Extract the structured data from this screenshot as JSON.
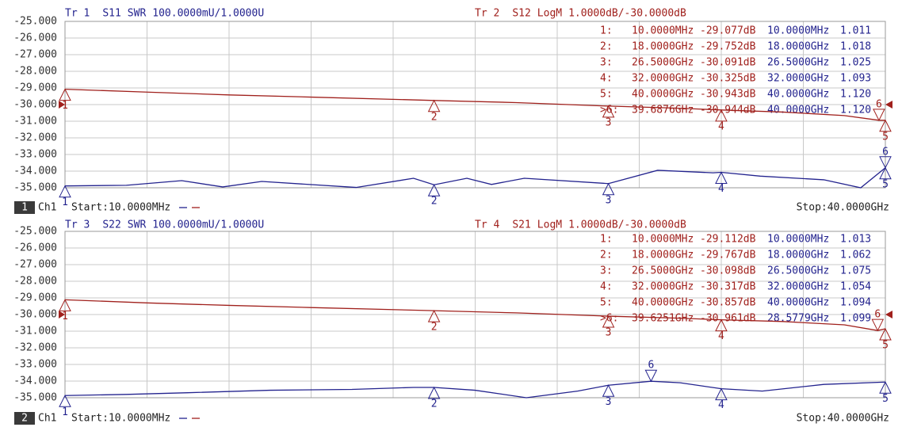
{
  "chart_data": [
    {
      "type": "line",
      "xlim": [
        0.01,
        40
      ],
      "ylim": [
        -35,
        -25
      ],
      "y2lim": [
        1,
        2
      ],
      "yticks": [
        {
          "value": -25,
          "label": "-25.000"
        },
        {
          "value": -26,
          "label": "-26.000"
        },
        {
          "value": -27,
          "label": "-27.000"
        },
        {
          "value": -28,
          "label": "-28.000"
        },
        {
          "value": -29,
          "label": "-29.000"
        },
        {
          "value": -30,
          "label": "-30.000"
        },
        {
          "value": -31,
          "label": "-31.000"
        },
        {
          "value": -32,
          "label": "-32.000"
        },
        {
          "value": -33,
          "label": "-33.000"
        },
        {
          "value": -34,
          "label": "-34.000"
        },
        {
          "value": -35,
          "label": "-35.000"
        }
      ],
      "series": [
        {
          "name": "Tr 1",
          "param": "S11",
          "format": "SWR",
          "scale": "100.0000mU/1.0000U",
          "color": "#23238e",
          "axis": "y2",
          "x": [
            0.01,
            3,
            5.7,
            7.7,
            9.6,
            14.2,
            17,
            18,
            19.6,
            20.8,
            22.4,
            26.5,
            28.9,
            31.6,
            32,
            33.9,
            37,
            38.8,
            40
          ],
          "values": [
            1.011,
            1.015,
            1.043,
            1.005,
            1.038,
            1.002,
            1.057,
            1.018,
            1.057,
            1.02,
            1.057,
            1.025,
            1.105,
            1.09,
            1.093,
            1.07,
            1.048,
            1.0,
            1.12
          ],
          "markers": [
            {
              "id": "1",
              "x": 0.01,
              "value": 1.011,
              "x_label": "10.0000MHz",
              "value_label": "1.011"
            },
            {
              "id": "2",
              "x": 18,
              "value": 1.018,
              "x_label": "18.0000GHz",
              "value_label": "1.018"
            },
            {
              "id": "3",
              "x": 26.5,
              "value": 1.025,
              "x_label": "26.5000GHz",
              "value_label": "1.025"
            },
            {
              "id": "4",
              "x": 32,
              "value": 1.093,
              "x_label": "32.0000GHz",
              "value_label": "1.093"
            },
            {
              "id": "5",
              "x": 40,
              "value": 1.12,
              "x_label": "40.0000GHz",
              "value_label": "1.120"
            },
            {
              "id": "6",
              "x": 40,
              "value": 1.12,
              "x_label": "40.0000GHz",
              "value_label": "1.120"
            }
          ]
        },
        {
          "name": "Tr 2",
          "param": "S12",
          "format": "LogM",
          "scale": "1.0000dB/-30.0000dB",
          "color": "#a0201c",
          "x": [
            0.01,
            4,
            8,
            12,
            18,
            22,
            26.5,
            30,
            32,
            35,
            38,
            39.6876,
            40
          ],
          "values": [
            -29.077,
            -29.25,
            -29.42,
            -29.55,
            -29.752,
            -29.88,
            -30.091,
            -30.22,
            -30.325,
            -30.45,
            -30.66,
            -30.944,
            -30.943
          ],
          "markers": [
            {
              "id": "1",
              "table_label": "1:",
              "x": 0.01,
              "value": -29.077,
              "x_label": "10.0000MHz",
              "value_label": "-29.077dB"
            },
            {
              "id": "2",
              "table_label": "2:",
              "x": 18,
              "value": -29.752,
              "x_label": "18.0000GHz",
              "value_label": "-29.752dB"
            },
            {
              "id": "3",
              "table_label": "3:",
              "x": 26.5,
              "value": -30.091,
              "x_label": "26.5000GHz",
              "value_label": "-30.091dB"
            },
            {
              "id": "4",
              "table_label": "4:",
              "x": 32,
              "value": -30.325,
              "x_label": "32.0000GHz",
              "value_label": "-30.325dB"
            },
            {
              "id": "5",
              "table_label": "5:",
              "x": 40,
              "value": -30.943,
              "x_label": "40.0000GHz",
              "value_label": "-30.943dB"
            },
            {
              "id": "6",
              "table_label": ">6:",
              "x": 39.6876,
              "value": -30.944,
              "x_label": "39.6876GHz",
              "value_label": "-30.944dB"
            }
          ]
        }
      ],
      "footer": {
        "channel": "1",
        "label": "Ch1",
        "start": "Start:10.0000MHz",
        "stop": "Stop:40.0000GHz"
      }
    },
    {
      "type": "line",
      "xlim": [
        0.01,
        40
      ],
      "ylim": [
        -35,
        -25
      ],
      "y2lim": [
        1,
        2
      ],
      "yticks": [
        {
          "value": -25,
          "label": "-25.000"
        },
        {
          "value": -26,
          "label": "-26.000"
        },
        {
          "value": -27,
          "label": "-27.000"
        },
        {
          "value": -28,
          "label": "-28.000"
        },
        {
          "value": -29,
          "label": "-29.000"
        },
        {
          "value": -30,
          "label": "-30.000"
        },
        {
          "value": -31,
          "label": "-31.000"
        },
        {
          "value": -32,
          "label": "-32.000"
        },
        {
          "value": -33,
          "label": "-33.000"
        },
        {
          "value": -34,
          "label": "-34.000"
        },
        {
          "value": -35,
          "label": "-35.000"
        }
      ],
      "series": [
        {
          "name": "Tr 3",
          "param": "S22",
          "format": "SWR",
          "scale": "100.0000mU/1.0000U",
          "color": "#23238e",
          "axis": "y2",
          "x": [
            0.01,
            3,
            6,
            10,
            14,
            17,
            18,
            20,
            22.5,
            25,
            26.5,
            28.5779,
            30,
            32,
            34,
            37,
            40
          ],
          "values": [
            1.013,
            1.02,
            1.03,
            1.045,
            1.05,
            1.062,
            1.062,
            1.045,
            1.0,
            1.04,
            1.075,
            1.099,
            1.09,
            1.054,
            1.04,
            1.08,
            1.094
          ],
          "markers": [
            {
              "id": "1",
              "x": 0.01,
              "value": 1.013,
              "x_label": "10.0000MHz",
              "value_label": "1.013"
            },
            {
              "id": "2",
              "x": 18,
              "value": 1.062,
              "x_label": "18.0000GHz",
              "value_label": "1.062"
            },
            {
              "id": "3",
              "x": 26.5,
              "value": 1.075,
              "x_label": "26.5000GHz",
              "value_label": "1.075"
            },
            {
              "id": "4",
              "x": 32,
              "value": 1.054,
              "x_label": "32.0000GHz",
              "value_label": "1.054"
            },
            {
              "id": "5",
              "x": 40,
              "value": 1.094,
              "x_label": "40.0000GHz",
              "value_label": "1.094"
            },
            {
              "id": "6",
              "x": 28.5779,
              "value": 1.099,
              "x_label": "28.5779GHz",
              "value_label": "1.099"
            }
          ]
        },
        {
          "name": "Tr 4",
          "param": "S21",
          "format": "LogM",
          "scale": "1.0000dB/-30.0000dB",
          "color": "#a0201c",
          "x": [
            0.01,
            4,
            8,
            12,
            18,
            22,
            26.5,
            30,
            32,
            35,
            38,
            39.6251,
            40
          ],
          "values": [
            -29.112,
            -29.3,
            -29.45,
            -29.58,
            -29.767,
            -29.9,
            -30.098,
            -30.22,
            -30.317,
            -30.42,
            -30.62,
            -30.961,
            -30.857
          ],
          "markers": [
            {
              "id": "1",
              "table_label": "1:",
              "x": 0.01,
              "value": -29.112,
              "x_label": "10.0000MHz",
              "value_label": "-29.112dB"
            },
            {
              "id": "2",
              "table_label": "2:",
              "x": 18,
              "value": -29.767,
              "x_label": "18.0000GHz",
              "value_label": "-29.767dB"
            },
            {
              "id": "3",
              "table_label": "3:",
              "x": 26.5,
              "value": -30.098,
              "x_label": "26.5000GHz",
              "value_label": "-30.098dB"
            },
            {
              "id": "4",
              "table_label": "4:",
              "x": 32,
              "value": -30.317,
              "x_label": "32.0000GHz",
              "value_label": "-30.317dB"
            },
            {
              "id": "5",
              "table_label": "5:",
              "x": 40,
              "value": -30.857,
              "x_label": "40.0000GHz",
              "value_label": "-30.857dB"
            },
            {
              "id": "6",
              "table_label": ">6:",
              "x": 39.6251,
              "value": -30.961,
              "x_label": "39.6251GHz",
              "value_label": "-30.961dB"
            }
          ]
        }
      ],
      "footer": {
        "channel": "2",
        "label": "Ch1",
        "start": "Start:10.0000MHz",
        "stop": "Stop:40.0000GHz"
      }
    }
  ]
}
